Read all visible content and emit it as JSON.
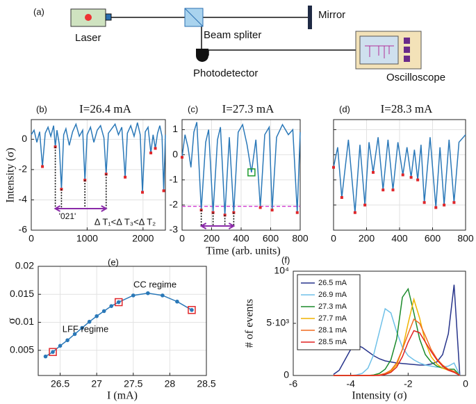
{
  "schematic": {
    "label": "(a)",
    "laser": "Laser",
    "splitter": "Beam spliter",
    "mirror": "Mirror",
    "detector": "Photodetector",
    "scope": "Oscilloscope"
  },
  "chart_data": [
    {
      "type": "line",
      "label": "(b)",
      "title": "I=26.4 mA",
      "ylabel": "Intensity (σ)",
      "color": "#2a78b8",
      "grid": true,
      "x": [
        0,
        50,
        100,
        150,
        200,
        250,
        300,
        350,
        400,
        430,
        460,
        500,
        540,
        580,
        620,
        680,
        740,
        800,
        860,
        920,
        960,
        1000,
        1060,
        1120,
        1180,
        1240,
        1300,
        1340,
        1380,
        1440,
        1500,
        1560,
        1620,
        1680,
        1720,
        1780,
        1840,
        1900,
        1950,
        1990,
        2040,
        2090,
        2140,
        2180,
        2220,
        2260,
        2300,
        2340,
        2370,
        2400
      ],
      "values": [
        0.3,
        0.6,
        -0.2,
        0.5,
        -1.8,
        0.4,
        0.8,
        0.2,
        0.9,
        -0.5,
        0.6,
        -0.3,
        -3.3,
        0.3,
        0.7,
        -0.4,
        0.5,
        1.0,
        0.2,
        0.6,
        -2.7,
        0.3,
        0.8,
        -0.2,
        0.6,
        0.9,
        0.1,
        -2.3,
        0.4,
        0.7,
        1.0,
        0.3,
        0.8,
        -2.5,
        0.4,
        0.9,
        0.2,
        1.1,
        0.3,
        -3.5,
        0.5,
        0.8,
        -0.9,
        0.3,
        -0.6,
        0.4,
        0.9,
        0.2,
        -3.4,
        0.3
      ],
      "highlight_indices": [
        4,
        9,
        12,
        20,
        27,
        33,
        39,
        42,
        44,
        48
      ],
      "sequence_indices": [
        9,
        12,
        20,
        27
      ],
      "annotations": [
        "'021'",
        "Δ T₁<Δ T₃<Δ T₂"
      ],
      "xlim": [
        0,
        2400
      ],
      "ylim": [
        -6,
        1.3
      ],
      "xticks": [
        0,
        1000,
        2000
      ],
      "yticks": [
        -6,
        -4,
        -2,
        0
      ]
    },
    {
      "type": "line",
      "label": "(c)",
      "title": "I=27.3 mA",
      "xlabel": "Time (arb. units)",
      "color": "#2a78b8",
      "grid": true,
      "x": [
        0,
        20,
        40,
        60,
        80,
        100,
        130,
        160,
        180,
        210,
        240,
        260,
        290,
        320,
        350,
        380,
        410,
        440,
        470,
        500,
        530,
        560,
        590,
        610,
        640,
        680,
        720,
        750,
        780,
        800
      ],
      "values": [
        -0.1,
        0.8,
        0.3,
        -0.5,
        0.9,
        1.3,
        -2.2,
        0.5,
        1.0,
        -2.3,
        0.6,
        1.1,
        -2.4,
        0.7,
        -2.3,
        0.9,
        1.2,
        0.4,
        -0.7,
        0.6,
        -2.1,
        0.8,
        1.1,
        -2.2,
        0.7,
        1.2,
        0.8,
        1.0,
        -2.3,
        0.9
      ],
      "highlight_indices": [
        0,
        6,
        9,
        12,
        14,
        20,
        23,
        28
      ],
      "sequence_indices": [
        6,
        9,
        12,
        14
      ],
      "boxed_index": 18,
      "hline": -2.05,
      "xlim": [
        0,
        800
      ],
      "ylim": [
        -3,
        1.4
      ],
      "xticks": [
        0,
        200,
        400,
        600,
        800
      ],
      "yticks": [
        -3,
        -2,
        -1,
        0,
        1
      ]
    },
    {
      "type": "line",
      "label": "(d)",
      "title": "I=28.3 mA",
      "color": "#2a78b8",
      "grid": true,
      "ytick_labels": false,
      "x": [
        0,
        25,
        50,
        90,
        130,
        160,
        190,
        215,
        240,
        270,
        300,
        330,
        360,
        390,
        420,
        445,
        470,
        490,
        510,
        530,
        550,
        585,
        620,
        645,
        670,
        700,
        730,
        760,
        800
      ],
      "values": [
        -0.5,
        0.3,
        -1.7,
        0.6,
        -2.3,
        0.4,
        -2.0,
        0.5,
        -0.7,
        0.7,
        -1.4,
        0.6,
        -1.4,
        0.5,
        -0.8,
        0.3,
        -0.9,
        0.2,
        -1.0,
        0.4,
        -1.9,
        0.7,
        -2.1,
        0.3,
        -2.0,
        0.6,
        -1.9,
        0.5,
        0.8
      ],
      "highlight_indices": [
        0,
        2,
        4,
        6,
        8,
        10,
        12,
        14,
        16,
        18,
        20,
        22,
        24,
        26
      ],
      "xlim": [
        0,
        800
      ],
      "ylim": [
        -3,
        1.4
      ],
      "xticks": [
        0,
        200,
        400,
        600,
        800
      ],
      "yticks": [
        -3,
        -2,
        -1,
        0,
        1
      ]
    },
    {
      "type": "line",
      "label": "(e)",
      "xlabel": "I (mA)",
      "ylabel": "σ",
      "color": "#2a78b8",
      "grid": true,
      "markers": true,
      "x": [
        26.3,
        26.4,
        26.5,
        26.6,
        26.7,
        26.8,
        26.9,
        27.0,
        27.1,
        27.2,
        27.3,
        27.5,
        27.7,
        27.9,
        28.1,
        28.3
      ],
      "values": [
        0.0039,
        0.0047,
        0.0058,
        0.0068,
        0.0079,
        0.009,
        0.0101,
        0.0111,
        0.012,
        0.0129,
        0.0136,
        0.0148,
        0.0152,
        0.0148,
        0.0137,
        0.0122
      ],
      "boxed_indices": [
        1,
        10,
        15
      ],
      "annotations": [
        "CC regime",
        "LFF regime"
      ],
      "xlim": [
        26.2,
        28.5
      ],
      "ylim": [
        0.0005,
        0.02
      ],
      "xticks": [
        26.5,
        27,
        27.5,
        28,
        28.5
      ],
      "yticks": [
        0.005,
        0.01,
        0.015,
        0.02
      ]
    },
    {
      "type": "line",
      "label": "(f)",
      "xlabel": "Intensity (σ)",
      "ylabel": "# of events",
      "grid": false,
      "legend": "upper left",
      "x": [
        -4.6,
        -4.4,
        -4.2,
        -4.0,
        -3.8,
        -3.6,
        -3.4,
        -3.2,
        -3.0,
        -2.8,
        -2.6,
        -2.4,
        -2.2,
        -2.0,
        -1.8,
        -1.6,
        -1.4,
        -1.2,
        -1.0,
        -0.8,
        -0.6,
        -0.4,
        -0.2
      ],
      "series": [
        {
          "name": "26.5 mA",
          "color": "#27348b",
          "values": [
            100,
            500,
            1500,
            2500,
            2900,
            2700,
            2300,
            1900,
            1600,
            1400,
            1300,
            1200,
            1150,
            1100,
            1050,
            1000,
            1000,
            1100,
            1300,
            2000,
            4000,
            8700,
            0
          ]
        },
        {
          "name": "26.9 mA",
          "color": "#6ec0e8",
          "values": [
            0,
            0,
            0,
            0,
            50,
            200,
            700,
            2000,
            4200,
            6400,
            6000,
            4200,
            2700,
            1900,
            1500,
            1200,
            1000,
            900,
            800,
            800,
            900,
            1200,
            0
          ]
        },
        {
          "name": "27.3 mA",
          "color": "#1a8a2a",
          "values": [
            0,
            0,
            0,
            0,
            0,
            0,
            0,
            50,
            200,
            600,
            1500,
            3500,
            7500,
            8300,
            6000,
            3500,
            2000,
            1300,
            900,
            700,
            600,
            600,
            0
          ]
        },
        {
          "name": "27.7 mA",
          "color": "#f0b400",
          "values": [
            0,
            0,
            0,
            0,
            0,
            0,
            0,
            0,
            50,
            150,
            400,
            1000,
            2500,
            5000,
            7300,
            5500,
            3200,
            1800,
            1100,
            700,
            500,
            400,
            0
          ]
        },
        {
          "name": "28.1 mA",
          "color": "#f06a1e",
          "values": [
            0,
            0,
            0,
            0,
            0,
            0,
            0,
            0,
            50,
            200,
            500,
            1200,
            2500,
            4000,
            5400,
            5000,
            3800,
            2500,
            1600,
            1000,
            600,
            400,
            0
          ]
        },
        {
          "name": "28.5 mA",
          "color": "#e02020",
          "values": [
            0,
            0,
            0,
            0,
            0,
            0,
            0,
            0,
            0,
            100,
            300,
            800,
            1800,
            3200,
            4300,
            4100,
            3200,
            2300,
            1500,
            900,
            500,
            300,
            0
          ]
        }
      ],
      "xlim": [
        -6,
        0
      ],
      "ylim": [
        0,
        10000
      ],
      "xticks": [
        -6,
        -4,
        -2,
        0
      ],
      "yticks": [
        0,
        {
          "value": 5000,
          "label": "5·10³"
        },
        {
          "value": 10000,
          "label": "10⁴"
        }
      ]
    }
  ]
}
